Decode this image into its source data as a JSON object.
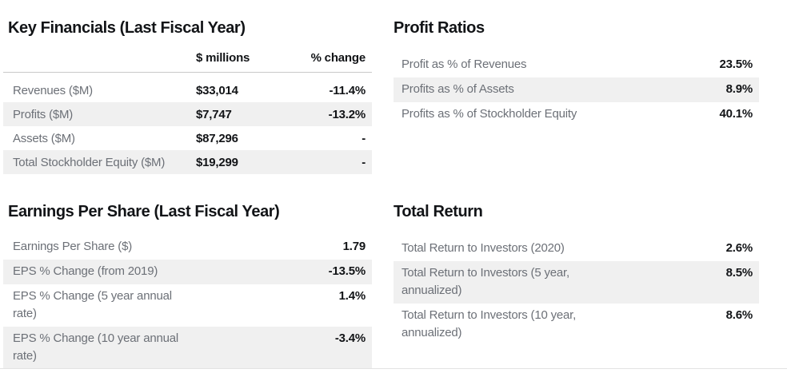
{
  "page": {
    "background": "#ffffff",
    "title_color": "#121417",
    "label_color": "#6c7077",
    "value_color": "#121417",
    "row_alt_bg": "#f0f0f0",
    "header_border_color": "#c9c9c9",
    "bottom_divider_color": "#e3e3e3"
  },
  "key_financials": {
    "title": "Key Financials (Last Fiscal Year)",
    "col_headers": {
      "millions": "$ millions",
      "change": "% change"
    },
    "rows": [
      {
        "label": "Revenues ($M)",
        "value": "$33,014",
        "change": "-11.4%"
      },
      {
        "label": "Profits ($M)",
        "value": "$7,747",
        "change": "-13.2%"
      },
      {
        "label": "Assets ($M)",
        "value": "$87,296",
        "change": "-"
      },
      {
        "label": "Total Stockholder Equity ($M)",
        "value": "$19,299",
        "change": "-"
      }
    ]
  },
  "profit_ratios": {
    "title": "Profit Ratios",
    "rows": [
      {
        "label": "Profit as % of Revenues",
        "value": "23.5%"
      },
      {
        "label": "Profits as % of Assets",
        "value": "8.9%"
      },
      {
        "label": "Profits as % of Stockholder Equity",
        "value": "40.1%"
      }
    ]
  },
  "earnings_per_share": {
    "title": "Earnings Per Share (Last Fiscal Year)",
    "rows": [
      {
        "label": "Earnings Per Share ($)",
        "value": "1.79"
      },
      {
        "label": "EPS % Change (from 2019)",
        "value": "-13.5%"
      },
      {
        "label": "EPS % Change (5 year annual rate)",
        "value": "1.4%"
      },
      {
        "label": "EPS % Change (10 year annual rate)",
        "value": "-3.4%"
      }
    ]
  },
  "total_return": {
    "title": "Total Return",
    "rows": [
      {
        "label": "Total Return to Investors (2020)",
        "value": "2.6%"
      },
      {
        "label": "Total Return to Investors (5 year, annualized)",
        "value": "8.5%"
      },
      {
        "label": "Total Return to Investors (10 year, annualized)",
        "value": "8.6%"
      }
    ]
  }
}
